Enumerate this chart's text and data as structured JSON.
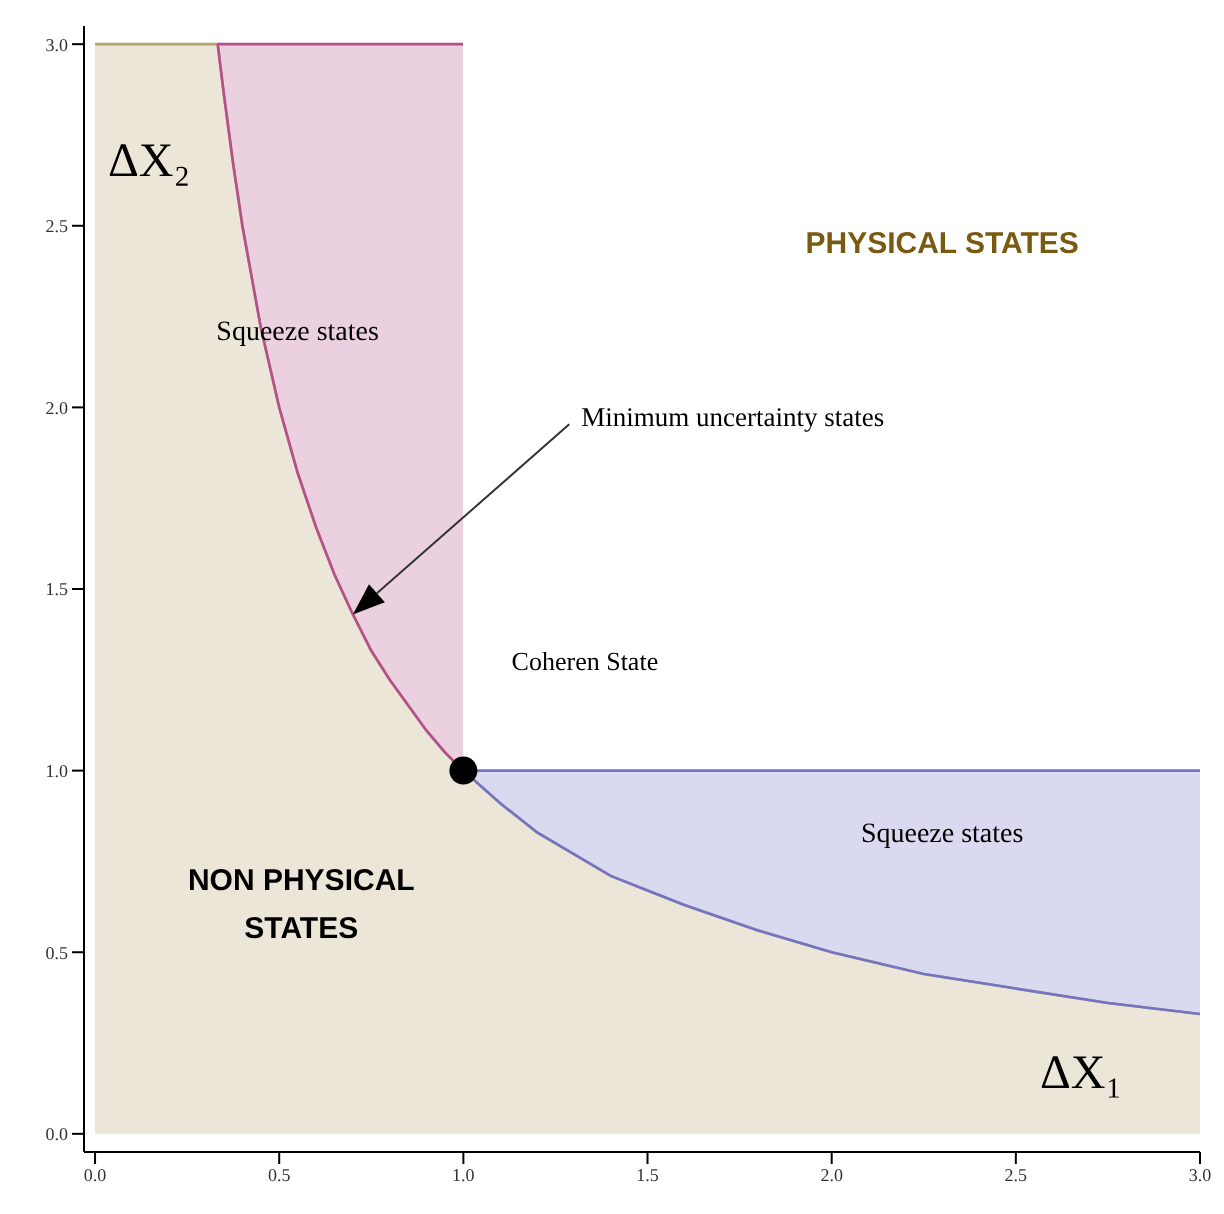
{
  "chart_data": {
    "type": "area",
    "stacked": true,
    "xlabel": "ΔX₁",
    "ylabel": "ΔX₂",
    "x": [
      0,
      0.333,
      0.35,
      0.375,
      0.4,
      0.45,
      0.5,
      0.55,
      0.6,
      0.65,
      0.7,
      0.75,
      0.8,
      0.85,
      0.9,
      0.95,
      0.999,
      1.0,
      1.1,
      1.2,
      1.3,
      1.4,
      1.5,
      1.6,
      1.8,
      2.0,
      2.25,
      2.5,
      2.75,
      3.0
    ],
    "series": [
      {
        "color": "#b5a46a",
        "values": [
          3,
          3,
          2.86,
          2.67,
          2.5,
          2.22,
          2,
          1.82,
          1.67,
          1.54,
          1.43,
          1.33,
          1.25,
          1.18,
          1.11,
          1.05,
          1,
          1,
          0.91,
          0.83,
          0.77,
          0.71,
          0.67,
          0.63,
          0.56,
          0.5,
          0.44,
          0.4,
          0.36,
          0.33
        ]
      },
      {
        "color": "#b5508c",
        "values": [
          null,
          0,
          0.14,
          0.33,
          0.5,
          0.78,
          1,
          1.18,
          1.33,
          1.46,
          1.57,
          1.67,
          1.75,
          1.82,
          1.89,
          1.95,
          2,
          null,
          null,
          null,
          null,
          null,
          null,
          null,
          null,
          null,
          null,
          null,
          null,
          null
        ]
      },
      {
        "color": "#7474c4",
        "values": [
          null,
          null,
          null,
          null,
          null,
          null,
          null,
          null,
          null,
          null,
          null,
          null,
          null,
          null,
          null,
          null,
          null,
          0,
          0.09,
          0.17,
          0.23,
          0.29,
          0.33,
          0.37,
          0.44,
          0.5,
          0.56,
          0.6,
          0.64,
          0.67
        ]
      },
      {
        "type": "scatter",
        "color": "#000000",
        "x": [
          1.0
        ],
        "values": [
          1.0
        ],
        "marker": "circle"
      }
    ],
    "annotations": [
      "PHYSICAL STATES",
      "NON PHYSICAL STATES",
      "Squeeze states",
      "Squeeze states",
      "Coheren State",
      "Minimum uncertainty states"
    ],
    "xlim": [
      -0.03,
      3.0
    ],
    "ylim": [
      -0.05,
      3.05
    ],
    "xticks": [
      {
        "value": 0,
        "label": "0.0"
      },
      0.5,
      {
        "value": 1,
        "label": "1.0"
      },
      1.5,
      {
        "value": 2,
        "label": "2.0"
      },
      2.5,
      {
        "value": 3,
        "label": "3.0"
      }
    ],
    "yticks": [
      {
        "value": 0,
        "label": "0.0"
      },
      0.5,
      {
        "value": 1,
        "label": "1.0"
      },
      1.5,
      {
        "value": 2,
        "label": "2.0"
      },
      2.5,
      {
        "value": 3,
        "label": "3.0"
      }
    ],
    "grid": false,
    "legend": false
  }
}
